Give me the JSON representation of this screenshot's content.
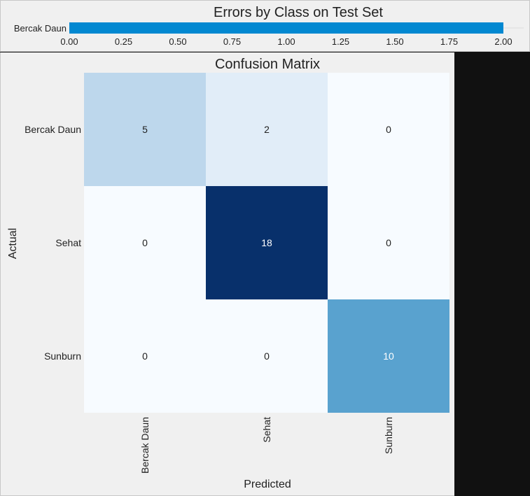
{
  "charts": {
    "errors": {
      "type": "bar",
      "orientation": "horizontal",
      "title": "Errors by Class on Test Set",
      "categories": [
        "Bercak Daun"
      ],
      "values": [
        2
      ],
      "xlim": [
        0,
        2.0
      ],
      "ticks": [
        "0.00",
        "0.25",
        "0.50",
        "0.75",
        "1.00",
        "1.25",
        "1.50",
        "1.75",
        "2.00"
      ],
      "tick_values": [
        0,
        0.25,
        0.5,
        0.75,
        1.0,
        1.25,
        1.5,
        1.75,
        2.0
      ],
      "bar_color": "#0288d1"
    },
    "confusion": {
      "type": "heatmap",
      "title": "Confusion Matrix",
      "xlabel": "Predicted",
      "ylabel": "Actual",
      "row_labels": [
        "Bercak Daun",
        "Sehat",
        "Sunburn"
      ],
      "col_labels": [
        "Bercak Daun",
        "Sehat",
        "Sunburn"
      ],
      "matrix": [
        [
          5,
          2,
          0
        ],
        [
          0,
          18,
          0
        ],
        [
          0,
          0,
          10
        ]
      ],
      "colormap": "Blues"
    }
  },
  "chart_data": [
    {
      "type": "bar",
      "title": "Errors by Class on Test Set",
      "categories": [
        "Bercak Daun"
      ],
      "values": [
        2
      ],
      "xlim": [
        0,
        2.0
      ]
    },
    {
      "type": "heatmap",
      "title": "Confusion Matrix",
      "xlabel": "Predicted",
      "ylabel": "Actual",
      "rows": [
        "Bercak Daun",
        "Sehat",
        "Sunburn"
      ],
      "cols": [
        "Bercak Daun",
        "Sehat",
        "Sunburn"
      ],
      "values": [
        [
          5,
          2,
          0
        ],
        [
          0,
          18,
          0
        ],
        [
          0,
          0,
          10
        ]
      ]
    }
  ]
}
